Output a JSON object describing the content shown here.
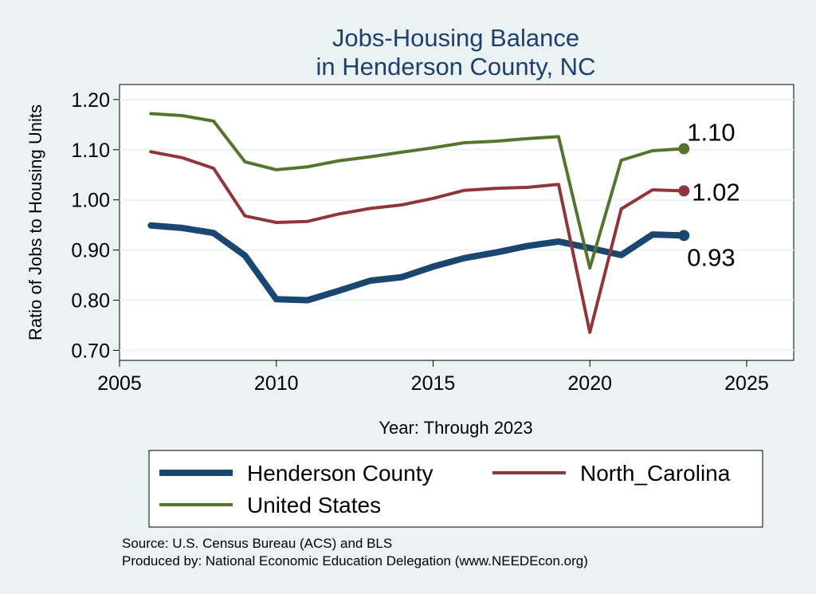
{
  "chart_data": {
    "type": "line",
    "title": [
      "Jobs-Housing Balance",
      "in Henderson County, NC"
    ],
    "xlabel": "Year: Through 2023",
    "ylabel": "Ratio of Jobs to Housing Units",
    "xlim": [
      2005,
      2026.5
    ],
    "ylim": [
      0.68,
      1.23
    ],
    "xticks": [
      2005,
      2010,
      2015,
      2020,
      2025
    ],
    "yticks": [
      0.7,
      0.8,
      0.9,
      1.0,
      1.1,
      1.2
    ],
    "ytick_labels": [
      "0.70",
      "0.80",
      "0.90",
      "1.00",
      "1.10",
      "1.20"
    ],
    "grid": true,
    "legend_position": "bottom",
    "x": [
      2006,
      2007,
      2008,
      2009,
      2010,
      2011,
      2012,
      2013,
      2014,
      2015,
      2016,
      2017,
      2018,
      2019,
      2020,
      2021,
      2022,
      2023
    ],
    "series": [
      {
        "name": "Henderson County",
        "color": "#1a476f",
        "values": [
          0.949,
          0.944,
          0.934,
          0.889,
          0.802,
          0.8,
          0.819,
          0.839,
          0.846,
          0.867,
          0.884,
          0.895,
          0.908,
          0.917,
          0.904,
          0.89,
          0.931,
          0.929
        ],
        "end_label": "0.93"
      },
      {
        "name": "North_Carolina",
        "color": "#90353b",
        "values": [
          1.096,
          1.084,
          1.063,
          0.968,
          0.955,
          0.957,
          0.972,
          0.983,
          0.99,
          1.003,
          1.019,
          1.023,
          1.025,
          1.031,
          0.736,
          0.982,
          1.02,
          1.018
        ],
        "end_label": "1.02"
      },
      {
        "name": "United States",
        "color": "#55752f",
        "values": [
          1.172,
          1.168,
          1.157,
          1.076,
          1.06,
          1.066,
          1.078,
          1.086,
          1.095,
          1.104,
          1.114,
          1.117,
          1.122,
          1.126,
          0.864,
          1.079,
          1.098,
          1.102
        ],
        "end_label": "1.10"
      }
    ],
    "source_lines": [
      "Source: U.S. Census Bureau (ACS) and BLS",
      "Produced by: National Economic Education Delegation (www.NEEDEcon.org)"
    ]
  }
}
